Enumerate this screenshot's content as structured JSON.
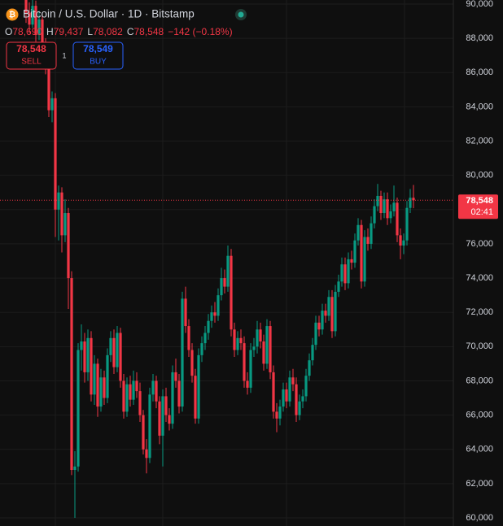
{
  "header": {
    "symbol": "Bitcoin / U.S. Dollar · 1D · Bitstamp",
    "ohlc": [
      {
        "label": "O",
        "value": "78,690"
      },
      {
        "label": "H",
        "value": "79,437"
      },
      {
        "label": "L",
        "value": "78,082"
      },
      {
        "label": "C",
        "value": "78,548"
      }
    ],
    "change": "−142 (−0.18%)",
    "sell": {
      "price": "78,548",
      "label": "SELL"
    },
    "quantity": "1",
    "buy": {
      "price": "78,549",
      "label": "BUY"
    }
  },
  "chart_data": {
    "type": "candlestick",
    "up_color": "#089981",
    "down_color": "#f23645",
    "ylim": [
      60000,
      90000
    ],
    "yticks": [
      {
        "value": 60000,
        "label": "60,000"
      },
      {
        "value": 62000,
        "label": "62,000"
      },
      {
        "value": 64000,
        "label": "64,000"
      },
      {
        "value": 66000,
        "label": "66,000"
      },
      {
        "value": 68000,
        "label": "68,000"
      },
      {
        "value": 70000,
        "label": "70,000"
      },
      {
        "value": 72000,
        "label": "72,000"
      },
      {
        "value": 74000,
        "label": "74,000"
      },
      {
        "value": 76000,
        "label": "76,000"
      },
      {
        "value": 78000,
        "label": "78,000"
      },
      {
        "value": 80000,
        "label": "80,000"
      },
      {
        "value": 82000,
        "label": "82,000"
      },
      {
        "value": 84000,
        "label": "84,000"
      },
      {
        "value": 86000,
        "label": "86,000"
      },
      {
        "value": 88000,
        "label": "88,000"
      },
      {
        "value": 90000,
        "label": "90,000"
      }
    ],
    "last_price": {
      "value": 78548,
      "label": "78,548"
    },
    "countdown": "02:41",
    "candles": [
      [
        90300,
        90900,
        88900,
        89500
      ],
      [
        89500,
        90100,
        88300,
        88800
      ],
      [
        88800,
        90500,
        88600,
        89900
      ],
      [
        89900,
        90200,
        87800,
        88200
      ],
      [
        88200,
        89600,
        87900,
        89100
      ],
      [
        89100,
        89400,
        86900,
        87600
      ],
      [
        87600,
        88000,
        85900,
        86500
      ],
      [
        86500,
        86800,
        83400,
        83800
      ],
      [
        83800,
        84900,
        83100,
        84500
      ],
      [
        84500,
        84800,
        76400,
        78000
      ],
      [
        78000,
        79400,
        76200,
        79000
      ],
      [
        79000,
        79300,
        75500,
        76500
      ],
      [
        76500,
        78600,
        76100,
        77800
      ],
      [
        77800,
        78100,
        72200,
        74000
      ],
      [
        74000,
        74400,
        62500,
        62800
      ],
      [
        62800,
        63900,
        60000,
        63000
      ],
      [
        63000,
        70200,
        62700,
        69800
      ],
      [
        69800,
        71300,
        68600,
        70300
      ],
      [
        70300,
        70800,
        67900,
        68500
      ],
      [
        68500,
        71000,
        68000,
        70500
      ],
      [
        70500,
        70900,
        66800,
        67200
      ],
      [
        67200,
        69500,
        66600,
        69000
      ],
      [
        69000,
        69300,
        65900,
        66500
      ],
      [
        66500,
        68700,
        66200,
        68200
      ],
      [
        68200,
        68600,
        66600,
        67000
      ],
      [
        67000,
        69900,
        66700,
        69500
      ],
      [
        69500,
        70900,
        69100,
        70500
      ],
      [
        70500,
        71000,
        68400,
        68800
      ],
      [
        68800,
        71200,
        68500,
        70800
      ],
      [
        70800,
        71100,
        67600,
        68000
      ],
      [
        68000,
        68400,
        65800,
        66200
      ],
      [
        66200,
        68200,
        65900,
        67800
      ],
      [
        67800,
        68300,
        66500,
        66900
      ],
      [
        66900,
        68600,
        66600,
        68000
      ],
      [
        68000,
        68500,
        67000,
        67400
      ],
      [
        67400,
        67900,
        65600,
        66000
      ],
      [
        66000,
        66300,
        63700,
        64000
      ],
      [
        64000,
        64600,
        62600,
        63500
      ],
      [
        63500,
        67600,
        63200,
        67200
      ],
      [
        67200,
        68400,
        66800,
        68000
      ],
      [
        68000,
        68300,
        66400,
        66800
      ],
      [
        66800,
        67100,
        64300,
        64800
      ],
      [
        64800,
        67500,
        63000,
        67100
      ],
      [
        67100,
        67600,
        65600,
        66000
      ],
      [
        66000,
        66400,
        65100,
        65500
      ],
      [
        65500,
        68900,
        65200,
        68500
      ],
      [
        68500,
        69300,
        67600,
        68000
      ],
      [
        68000,
        68400,
        66100,
        66500
      ],
      [
        66500,
        73200,
        66200,
        72800
      ],
      [
        72800,
        73500,
        70800,
        71200
      ],
      [
        71200,
        71600,
        69400,
        69800
      ],
      [
        69800,
        70200,
        67900,
        68300
      ],
      [
        68300,
        68700,
        65500,
        65800
      ],
      [
        65800,
        69900,
        65500,
        69500
      ],
      [
        69500,
        70600,
        69100,
        70200
      ],
      [
        70200,
        71200,
        69800,
        70800
      ],
      [
        70800,
        71900,
        70400,
        71500
      ],
      [
        71500,
        72400,
        71100,
        72000
      ],
      [
        72000,
        72600,
        71400,
        71800
      ],
      [
        71800,
        73400,
        71500,
        73000
      ],
      [
        73000,
        74600,
        72700,
        74000
      ],
      [
        74000,
        74500,
        73100,
        73500
      ],
      [
        73500,
        75900,
        73200,
        75300
      ],
      [
        75300,
        75700,
        70600,
        71000
      ],
      [
        71000,
        71400,
        69400,
        69800
      ],
      [
        69800,
        70900,
        69500,
        70500
      ],
      [
        70500,
        71000,
        69800,
        70200
      ],
      [
        70200,
        70600,
        67600,
        68000
      ],
      [
        68000,
        68500,
        67200,
        67600
      ],
      [
        67600,
        70200,
        67300,
        69800
      ],
      [
        69800,
        70500,
        69400,
        70000
      ],
      [
        70000,
        71500,
        69600,
        71000
      ],
      [
        71000,
        71400,
        69900,
        70300
      ],
      [
        70300,
        70700,
        68600,
        69000
      ],
      [
        69000,
        71600,
        68700,
        71200
      ],
      [
        71200,
        71500,
        68100,
        68500
      ],
      [
        68500,
        68900,
        65800,
        66200
      ],
      [
        66200,
        66700,
        65000,
        65800
      ],
      [
        65800,
        66900,
        65400,
        66500
      ],
      [
        66500,
        67900,
        66200,
        67500
      ],
      [
        67500,
        67900,
        66400,
        66800
      ],
      [
        66800,
        68600,
        66500,
        68200
      ],
      [
        68200,
        68700,
        67400,
        67800
      ],
      [
        67800,
        68200,
        65600,
        66000
      ],
      [
        66000,
        67200,
        65700,
        66800
      ],
      [
        66800,
        67500,
        66400,
        67100
      ],
      [
        67100,
        68700,
        66800,
        68300
      ],
      [
        68300,
        69600,
        68000,
        69200
      ],
      [
        69200,
        70500,
        68900,
        70100
      ],
      [
        70100,
        71800,
        69800,
        71400
      ],
      [
        71400,
        71800,
        70600,
        71000
      ],
      [
        71000,
        72500,
        70700,
        72100
      ],
      [
        72100,
        72500,
        71400,
        71800
      ],
      [
        71800,
        73300,
        71500,
        72900
      ],
      [
        72900,
        73300,
        70500,
        70900
      ],
      [
        70900,
        73600,
        70600,
        73200
      ],
      [
        73200,
        74200,
        72900,
        73800
      ],
      [
        73800,
        75200,
        73500,
        74800
      ],
      [
        74800,
        75200,
        73300,
        73700
      ],
      [
        73700,
        75500,
        73400,
        75100
      ],
      [
        75100,
        75600,
        74500,
        74900
      ],
      [
        74900,
        76600,
        74600,
        76200
      ],
      [
        76200,
        77500,
        75900,
        77100
      ],
      [
        77100,
        77400,
        73400,
        73800
      ],
      [
        73800,
        76800,
        73500,
        76400
      ],
      [
        76400,
        76900,
        75600,
        76000
      ],
      [
        76000,
        77600,
        75700,
        77200
      ],
      [
        77200,
        78600,
        76900,
        78200
      ],
      [
        78200,
        79500,
        77900,
        78800
      ],
      [
        78800,
        79100,
        77400,
        77800
      ],
      [
        77800,
        79000,
        77500,
        78600
      ],
      [
        78600,
        79000,
        77100,
        77500
      ],
      [
        77500,
        78300,
        77200,
        77900
      ],
      [
        77900,
        79400,
        77600,
        78400
      ],
      [
        78400,
        78700,
        76100,
        76500
      ],
      [
        76500,
        76900,
        75100,
        75900
      ],
      [
        75900,
        76600,
        75400,
        76200
      ],
      [
        76200,
        78500,
        75900,
        78100
      ],
      [
        78100,
        79200,
        77800,
        78690
      ],
      [
        78690,
        79437,
        78082,
        78548
      ]
    ]
  }
}
